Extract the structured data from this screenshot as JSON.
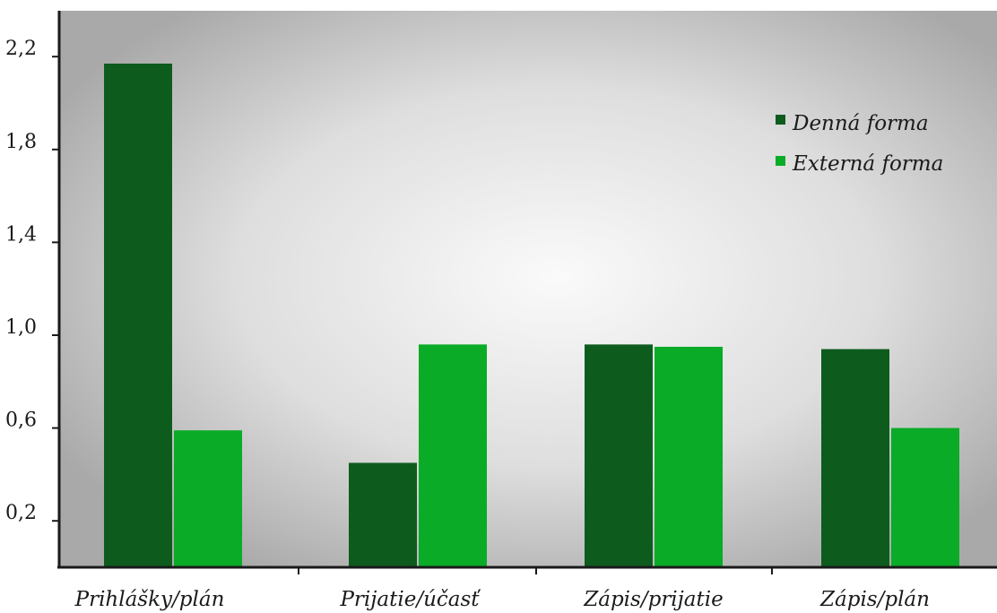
{
  "chart_data": {
    "type": "bar",
    "categories": [
      "Prihlášky/plán",
      "Prijatie/účasť",
      "Zápis/prijatie",
      "Zápis/plán"
    ],
    "series": [
      {
        "name": "Denná forma",
        "values": [
          2.17,
          0.45,
          0.96,
          0.94
        ],
        "color": "#0d5c1e"
      },
      {
        "name": "Externá forma",
        "values": [
          0.59,
          0.96,
          0.95,
          0.6
        ],
        "color": "#0aab27"
      }
    ],
    "y_ticks": [
      "0,2",
      "0,6",
      "1,0",
      "1,4",
      "1,8",
      "2,2"
    ],
    "y_tick_values": [
      0.2,
      0.6,
      1.0,
      1.4,
      1.8,
      2.2
    ],
    "ylim": [
      0,
      2.4
    ],
    "title": "",
    "xlabel": "",
    "ylabel": "",
    "legend_position": "top-right",
    "grid": false,
    "background": "radial gradient light gray"
  }
}
